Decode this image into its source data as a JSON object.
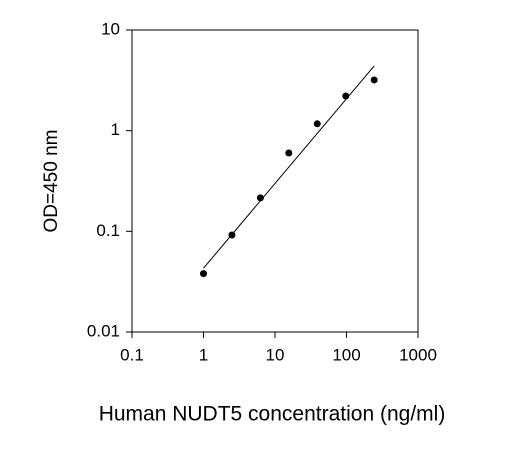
{
  "chart_data": {
    "type": "scatter",
    "x_label": "Human NUDT5 concentration (ng/ml)",
    "y_label": "OD=450 nm",
    "xscale": "log",
    "yscale": "log",
    "xlim": [
      0.1,
      1000
    ],
    "xticks": [
      0.1,
      1,
      10,
      100,
      1000
    ],
    "ylim": [
      0.01,
      10
    ],
    "yticks": [
      0.01,
      0.1,
      1,
      10
    ],
    "series": [
      {
        "x": [
          1,
          2.5,
          6.25,
          15.6,
          39,
          97.7,
          244
        ],
        "values": [
          0.038,
          0.092,
          0.215,
          0.6,
          1.17,
          2.21,
          3.19
        ],
        "color": "#000000"
      }
    ],
    "fit": {
      "x": [
        1,
        244
      ],
      "values": [
        0.043,
        4.4
      ],
      "color": "#000000"
    }
  }
}
